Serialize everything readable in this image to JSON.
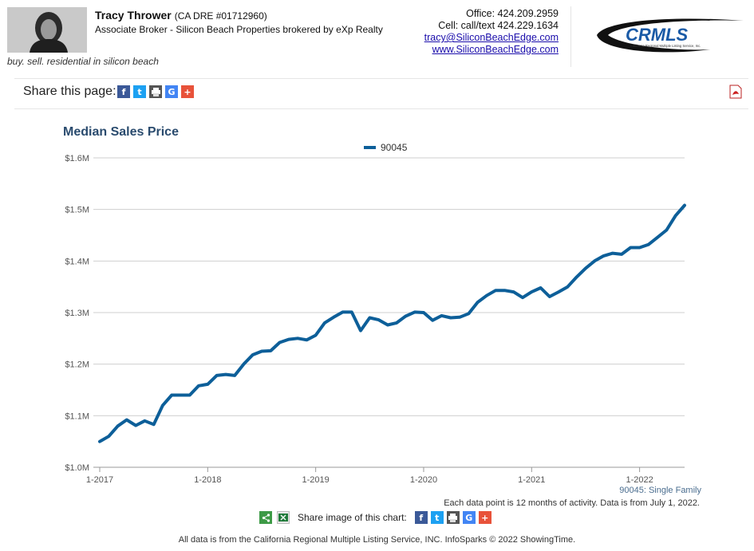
{
  "agent": {
    "name": "Tracy Thrower",
    "license": "(CA DRE #01712960)",
    "title": "Associate Broker - Silicon Beach Properties brokered by eXp Realty",
    "tagline": "buy. sell. residential in silicon beach"
  },
  "contact": {
    "office": "Office: 424.209.2959",
    "cell": "Cell: call/text 424.229.1634",
    "email": "tracy@SiliconBeachEdge.com",
    "website": "www.SiliconBeachEdge.com"
  },
  "logo": {
    "text": "CRMLS",
    "subtext": "California Regional Multiple Listing Service, Inc."
  },
  "share": {
    "label": "Share this page:",
    "icons": [
      "facebook-icon",
      "twitter-icon",
      "print-icon",
      "google-icon",
      "plus-icon"
    ]
  },
  "colors": {
    "series": "#0d5f99",
    "title": "#2a4b6e",
    "facebook": "#3b5998",
    "twitter": "#1da1f2",
    "print": "#555555",
    "google": "#4285f4",
    "plus": "#e8523a"
  },
  "chart_data": {
    "type": "line",
    "title": "Median Sales Price",
    "xlabel": "",
    "ylabel": "",
    "ylim": [
      1000000,
      1600000
    ],
    "yticks": [
      "$1.0M",
      "$1.1M",
      "$1.2M",
      "$1.3M",
      "$1.4M",
      "$1.5M",
      "$1.6M"
    ],
    "xticks": [
      "1-2017",
      "1-2018",
      "1-2019",
      "1-2020",
      "1-2021",
      "1-2022"
    ],
    "grid": true,
    "legend": "top-center",
    "x_start": "2017-01",
    "x_end": "2022-06",
    "series": [
      {
        "name": "90045",
        "values": [
          1050000,
          1060000,
          1080000,
          1092000,
          1081000,
          1090000,
          1083000,
          1120000,
          1140000,
          1140000,
          1140000,
          1158000,
          1161000,
          1178000,
          1180000,
          1178000,
          1200000,
          1218000,
          1225000,
          1226000,
          1242000,
          1248000,
          1250000,
          1247000,
          1256000,
          1280000,
          1291000,
          1301000,
          1301000,
          1265000,
          1290000,
          1286000,
          1276000,
          1280000,
          1293000,
          1301000,
          1300000,
          1285000,
          1294000,
          1290000,
          1291000,
          1298000,
          1320000,
          1333000,
          1343000,
          1343000,
          1340000,
          1329000,
          1340000,
          1348000,
          1331000,
          1340000,
          1350000,
          1369000,
          1386000,
          1400000,
          1410000,
          1415000,
          1413000,
          1426000,
          1426000,
          1432000,
          1446000,
          1460000,
          1488000,
          1508000
        ]
      }
    ]
  },
  "chart_footer": {
    "series_type": "90045: Single Family",
    "note": "Each data point is 12 months of activity. Data is from July 1, 2022.",
    "share_label": "Share image of this chart:"
  },
  "disclaimer": "All data is from the California Regional Multiple Listing Service, INC. InfoSparks © 2022 ShowingTime."
}
